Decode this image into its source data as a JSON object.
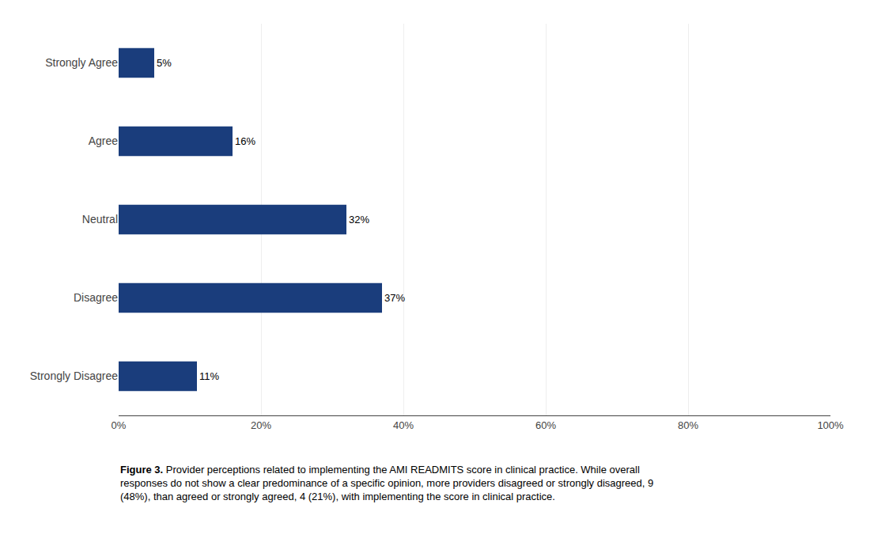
{
  "chart_data": {
    "type": "bar",
    "orientation": "horizontal",
    "categories": [
      "Strongly Agree",
      "Agree",
      "Neutral",
      "Disagree",
      "Strongly Disagree"
    ],
    "values": [
      5,
      16,
      32,
      37,
      11
    ],
    "value_labels": [
      "5%",
      "16%",
      "32%",
      "37%",
      "11%"
    ],
    "data_labels": true,
    "color": "#1a3d7c",
    "xlim": [
      0,
      100
    ],
    "xticks": [
      {
        "value": 0,
        "label": "0%"
      },
      {
        "value": 20,
        "label": "20%"
      },
      {
        "value": 40,
        "label": "40%"
      },
      {
        "value": 60,
        "label": "60%"
      },
      {
        "value": 80,
        "label": "80%"
      },
      {
        "value": 100,
        "label": "100%"
      }
    ],
    "grid": true,
    "annotations": [
      "Figure 3.",
      "Provider perceptions related to implementing the AMI READMITS score in clinical practice. While overall responses do not show a clear predominance of a specific opinion, more providers disagreed or strongly disagreed, 9 (48%), than agreed or strongly agreed, 4 (21%), with implementing the score in clinical practice."
    ]
  }
}
